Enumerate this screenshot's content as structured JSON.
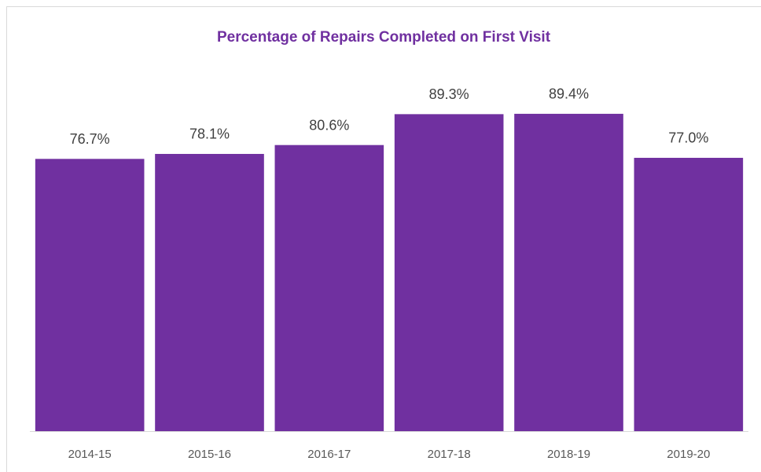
{
  "chart_data": {
    "type": "bar",
    "title": "Percentage of Repairs Completed on First Visit",
    "categories": [
      "2014-15",
      "2015-16",
      "2016-17",
      "2017-18",
      "2018-19",
      "2019-20"
    ],
    "values": [
      76.7,
      78.1,
      80.6,
      89.3,
      89.4,
      77.0
    ],
    "value_labels": [
      "76.7%",
      "78.1%",
      "80.6%",
      "89.3%",
      "89.4%",
      "77.0%"
    ],
    "color": "#7030a0",
    "ylim": [
      0,
      100
    ]
  }
}
